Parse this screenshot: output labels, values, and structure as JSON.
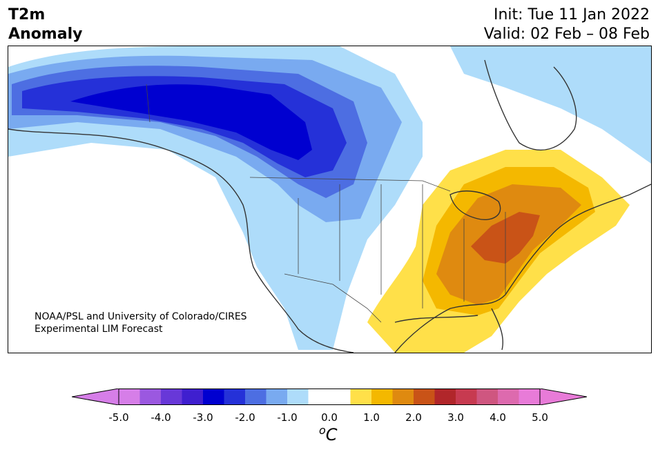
{
  "title": {
    "left_line1": "T2m",
    "left_line2": "Anomaly",
    "init": "Init: Tue 11 Jan 2022",
    "valid": "Valid: 02 Feb – 08 Feb"
  },
  "credit": {
    "line1": "NOAA/PSL and University of Colorado/CIRES",
    "line2": "Experimental LIM Forecast"
  },
  "colorbar": {
    "unit_base": "C",
    "unit_sup": "o",
    "tick_labels": [
      "-5.0",
      "-4.0",
      "-3.0",
      "-2.0",
      "-1.0",
      "0.0",
      "1.0",
      "2.0",
      "3.0",
      "4.0",
      "5.0"
    ],
    "colors": [
      "#d67ee8",
      "#9b58e0",
      "#6838d8",
      "#3f1fcf",
      "#0000d0",
      "#2531d8",
      "#4d6ee2",
      "#79aaf0",
      "#aedcfa",
      "#ffffff",
      "#ffffff",
      "#ffe049",
      "#f4b800",
      "#df8a10",
      "#c95317",
      "#b1262a",
      "#c73a50",
      "#cf5680",
      "#dd6aae",
      "#e87bd8"
    ],
    "under_color": "#d67ee8",
    "over_color": "#e87bd8"
  },
  "map_layers": {
    "ocean": "#ffffff",
    "land_outline": "#333333"
  }
}
